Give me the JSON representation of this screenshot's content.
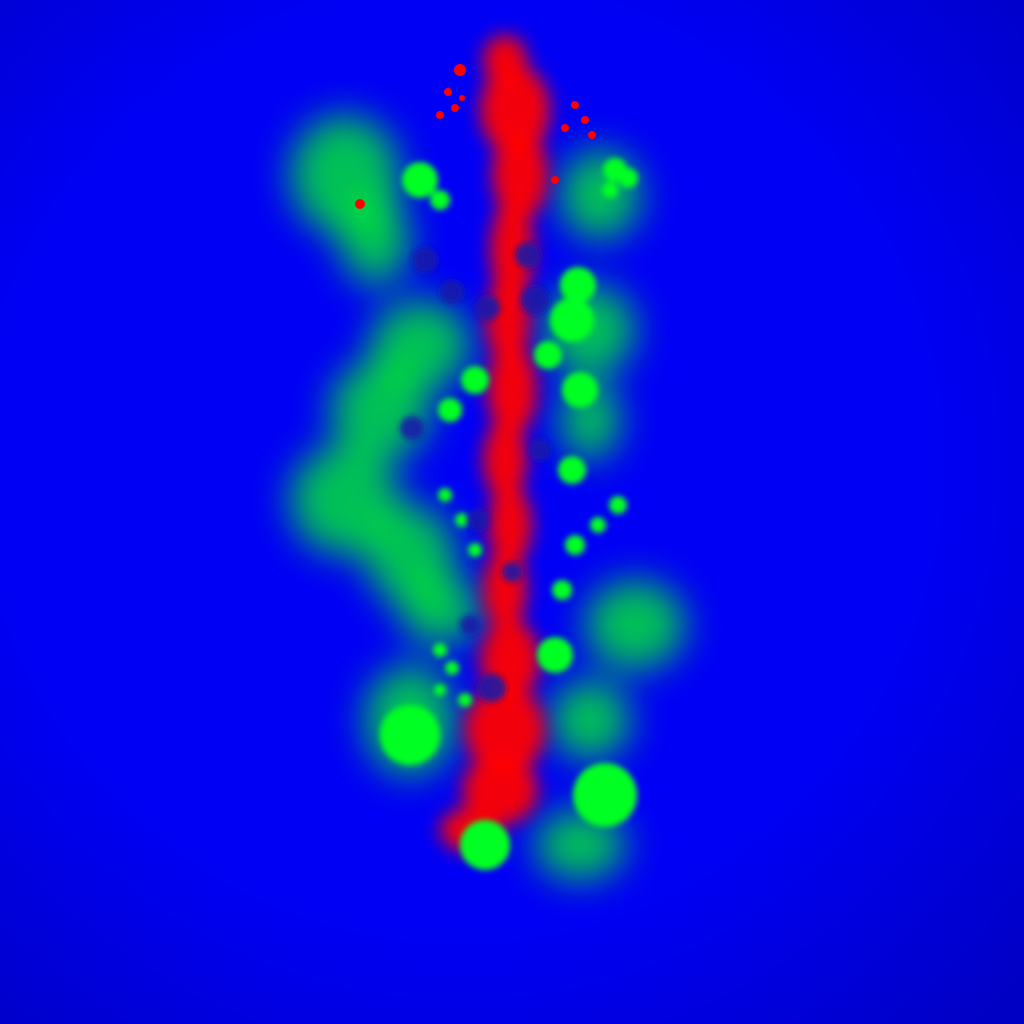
{
  "scene": {
    "background_color": "#0000f5",
    "edge_shade_color": "#0000c8",
    "primary_color": "#ff0000",
    "secondary_color": "#00ff22",
    "void_color": "#1a1aa8"
  }
}
